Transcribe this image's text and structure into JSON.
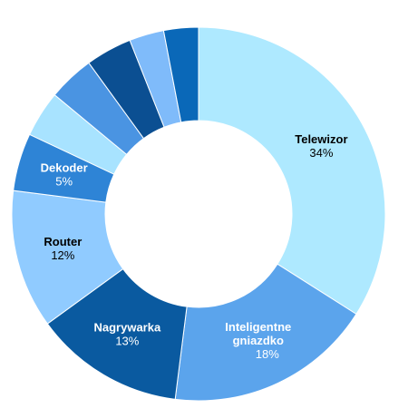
{
  "chart_data": {
    "type": "pie",
    "donut": true,
    "title": "",
    "slices": [
      {
        "label": "Telewizor",
        "value": 34,
        "value_label": "34%",
        "color": "#aee9ff",
        "text_color": "#000000"
      },
      {
        "label": "Inteligentne gniazdko",
        "label_lines": [
          "Inteligentne",
          "gniazdko"
        ],
        "value": 18,
        "value_label": "18%",
        "color": "#5ba4ec",
        "text_color": "#ffffff"
      },
      {
        "label": "Nagrywarka",
        "value": 13,
        "value_label": "13%",
        "color": "#0a5aa0",
        "text_color": "#ffffff"
      },
      {
        "label": "Router",
        "value": 12,
        "value_label": "12%",
        "color": "#90cbff",
        "text_color": "#000000"
      },
      {
        "label": "Dekoder",
        "value": 5,
        "value_label": "5%",
        "color": "#2e84d6",
        "text_color": "#ffffff"
      },
      {
        "label": "",
        "value": 4,
        "value_label": "",
        "color": "#a8e3ff",
        "text_color": "#000000"
      },
      {
        "label": "",
        "value": 4,
        "value_label": "",
        "color": "#4a94e2",
        "text_color": "#ffffff"
      },
      {
        "label": "",
        "value": 4,
        "value_label": "",
        "color": "#0b4f92",
        "text_color": "#ffffff"
      },
      {
        "label": "",
        "value": 3,
        "value_label": "",
        "color": "#7fbbfa",
        "text_color": "#000000"
      },
      {
        "label": "",
        "value": 3,
        "value_label": "",
        "color": "#0a68b8",
        "text_color": "#ffffff"
      }
    ]
  }
}
